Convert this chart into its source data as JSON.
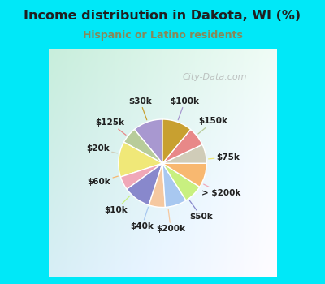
{
  "title": "Income distribution in Dakota, WI (%)",
  "subtitle": "Hispanic or Latino residents",
  "watermark": "City-Data.com",
  "slices": [
    {
      "label": "$100k",
      "value": 11,
      "color": "#a898d0"
    },
    {
      "label": "$150k",
      "value": 6,
      "color": "#b8cc9a"
    },
    {
      "label": "$75k",
      "value": 13,
      "color": "#f0e878"
    },
    {
      "label": "> $200k",
      "value": 5,
      "color": "#f0a8b8"
    },
    {
      "label": "$50k",
      "value": 10,
      "color": "#8888cc"
    },
    {
      "label": "$200k",
      "value": 6,
      "color": "#f5c8a0"
    },
    {
      "label": "$40k",
      "value": 8,
      "color": "#a8c8f0"
    },
    {
      "label": "$10k",
      "value": 7,
      "color": "#c8f080"
    },
    {
      "label": "$60k",
      "value": 9,
      "color": "#f8b870"
    },
    {
      "label": "$20k",
      "value": 7,
      "color": "#d0ccb8"
    },
    {
      "label": "$125k",
      "value": 7,
      "color": "#e88888"
    },
    {
      "label": "$30k",
      "value": 11,
      "color": "#c8a030"
    }
  ],
  "bg_cyan": "#00e8f8",
  "bg_chart_left": "#c8eedc",
  "bg_chart_right": "#e8f8f0",
  "title_color": "#202020",
  "subtitle_color": "#888858",
  "label_color": "#202020",
  "start_angle": 90,
  "figsize": [
    4.0,
    3.5
  ],
  "dpi": 100
}
